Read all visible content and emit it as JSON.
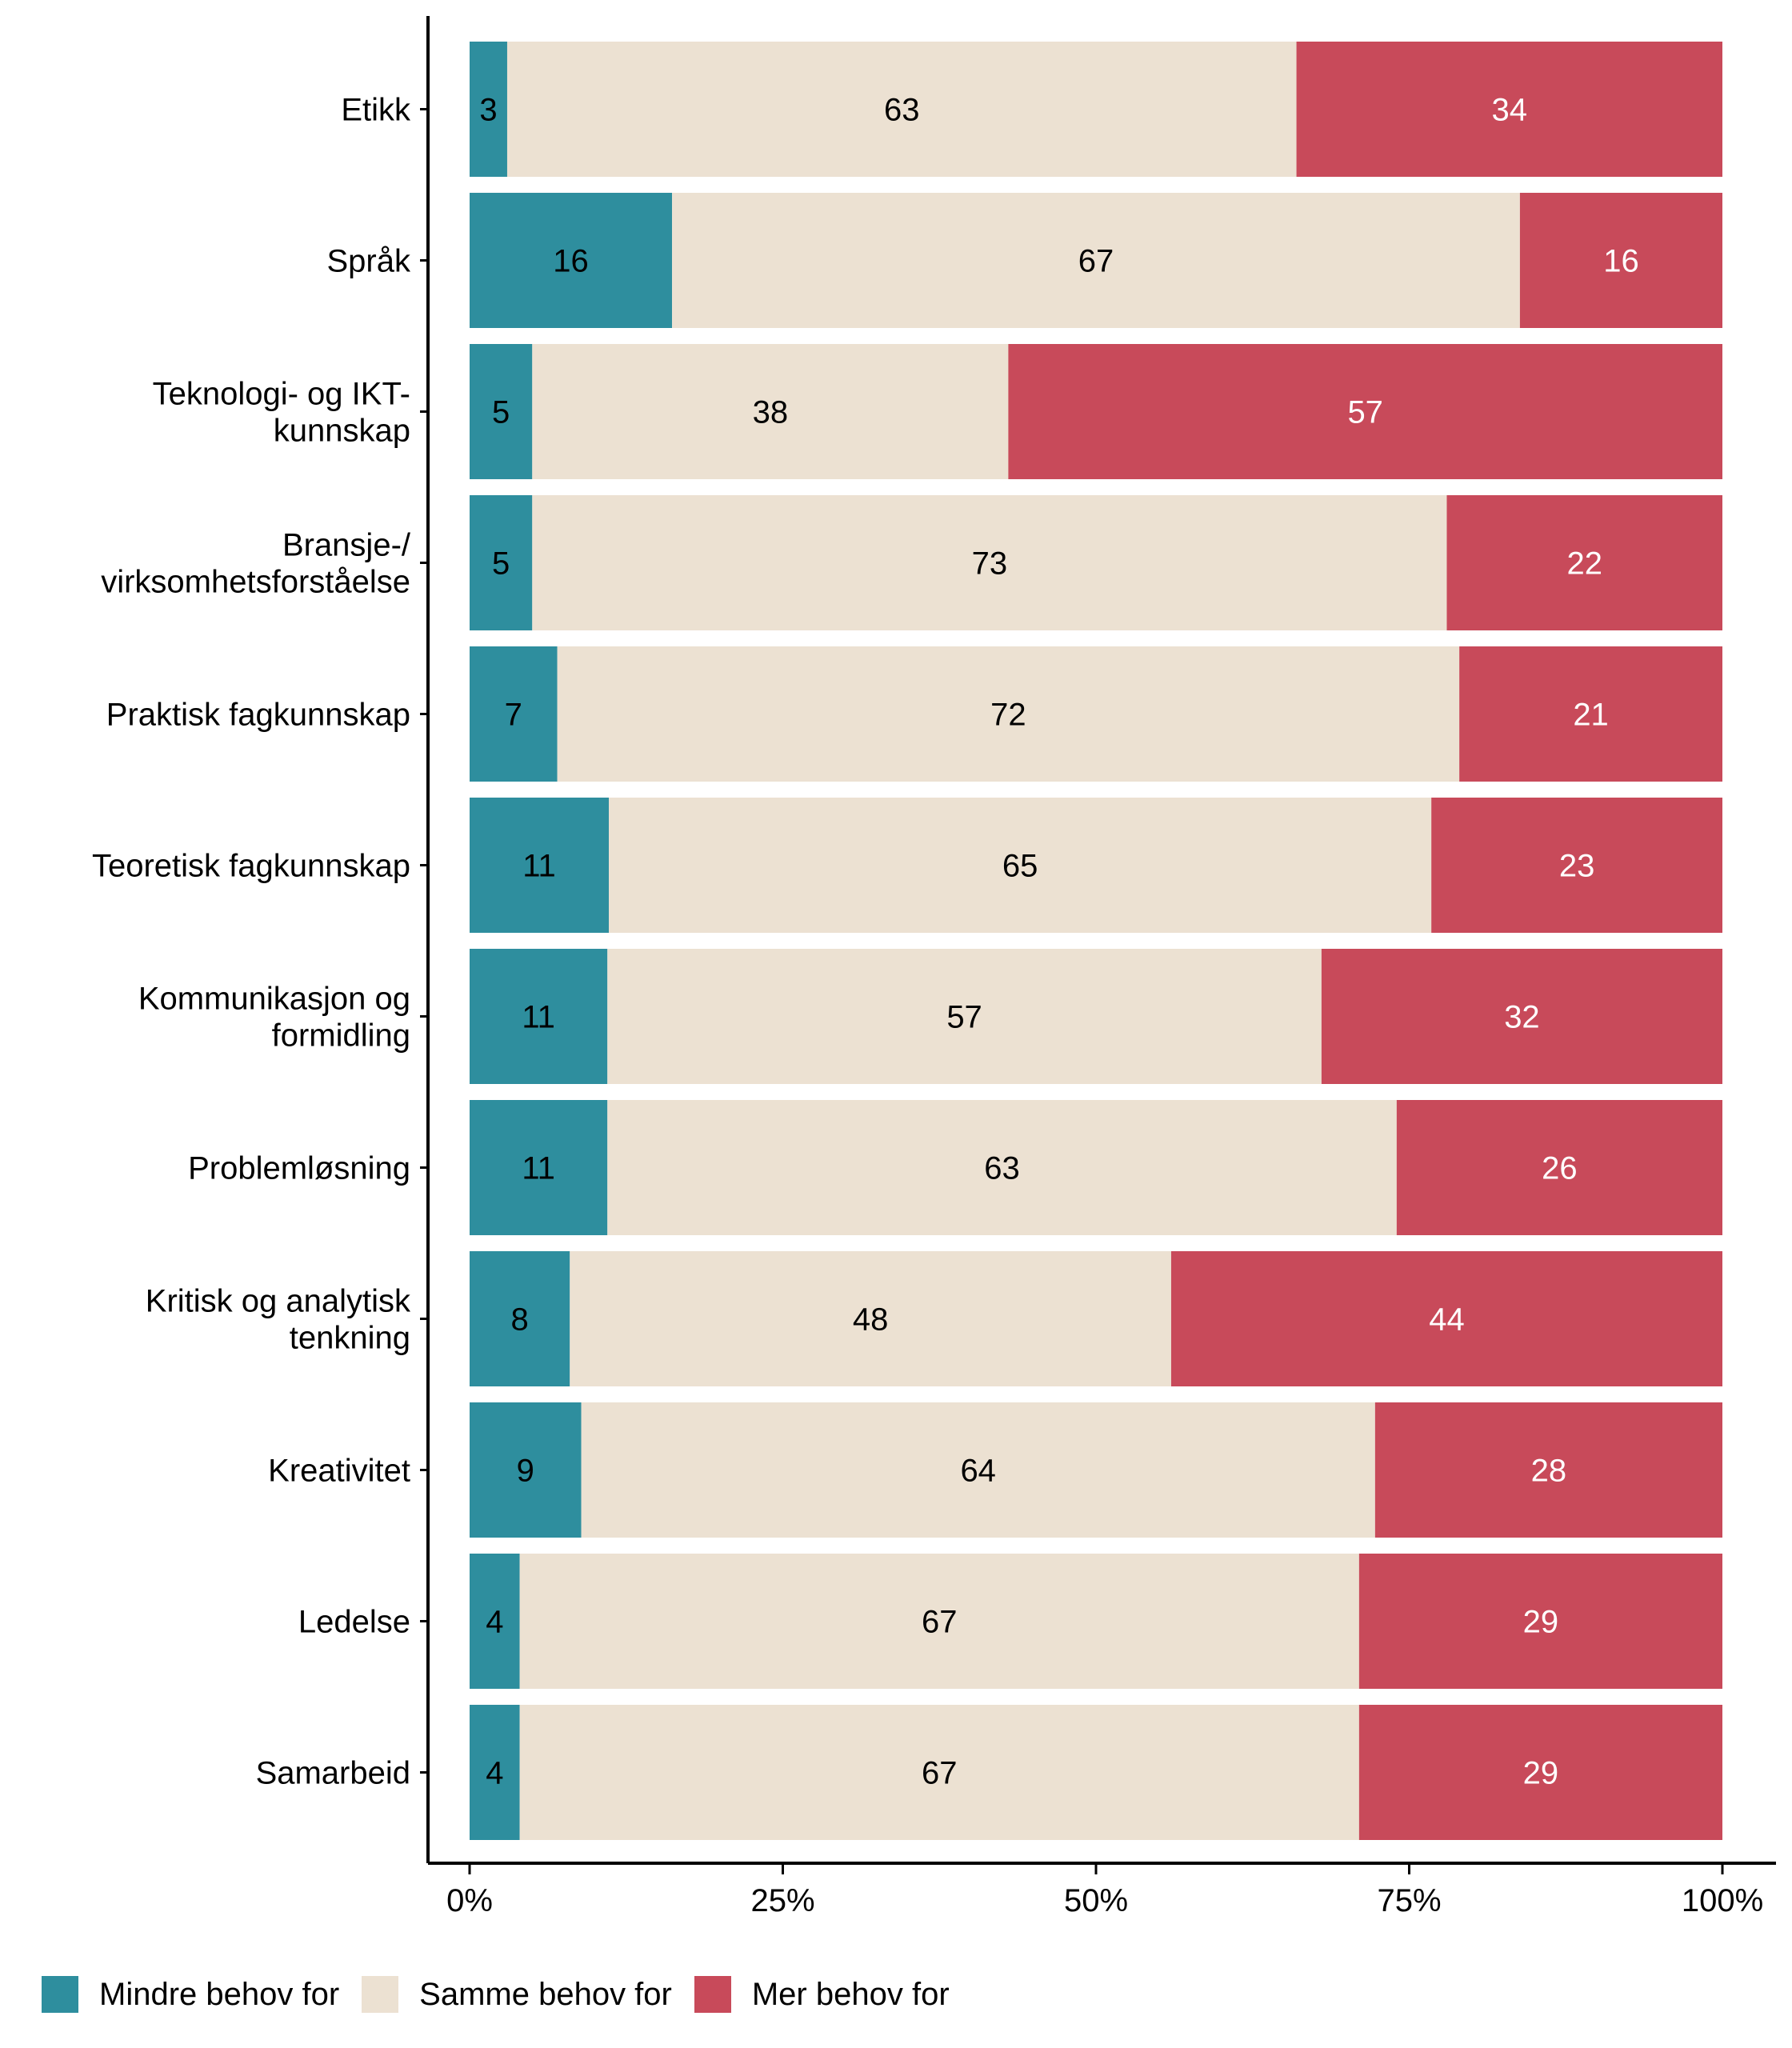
{
  "chart_data": {
    "type": "bar",
    "orientation": "horizontal",
    "stacked": true,
    "percent": true,
    "categories": [
      "Etikk",
      "Språk",
      "Teknologi- og IKT-\nkunnskap",
      "Bransje-/\nvirksomhetsforståelse",
      "Praktisk fagkunnskap",
      "Teoretisk fagkunnskap",
      "Kommunikasjon og\nformidling",
      "Problemløsning",
      "Kritisk og analytisk\ntenkning",
      "Kreativitet",
      "Ledelse",
      "Samarbeid"
    ],
    "series": [
      {
        "name": "Mindre behov for",
        "color": "#2E8E9E",
        "label_color": "#000000",
        "values": [
          3,
          16,
          5,
          5,
          7,
          11,
          11,
          11,
          8,
          9,
          4,
          4
        ]
      },
      {
        "name": "Samme behov for",
        "color": "#ECE1D2",
        "label_color": "#000000",
        "values": [
          63,
          67,
          38,
          73,
          72,
          65,
          57,
          63,
          48,
          64,
          67,
          67
        ]
      },
      {
        "name": "Mer behov for",
        "color": "#C84A5A",
        "label_color": "#FFFFFF",
        "values": [
          34,
          16,
          57,
          22,
          21,
          23,
          32,
          26,
          44,
          28,
          29,
          29
        ]
      }
    ],
    "xlim": [
      0,
      100
    ],
    "x_ticks": [
      "0%",
      "25%",
      "50%",
      "75%",
      "100%"
    ],
    "grid": false,
    "legend_position": "bottom-left",
    "title": "",
    "xlabel": "",
    "ylabel": ""
  }
}
